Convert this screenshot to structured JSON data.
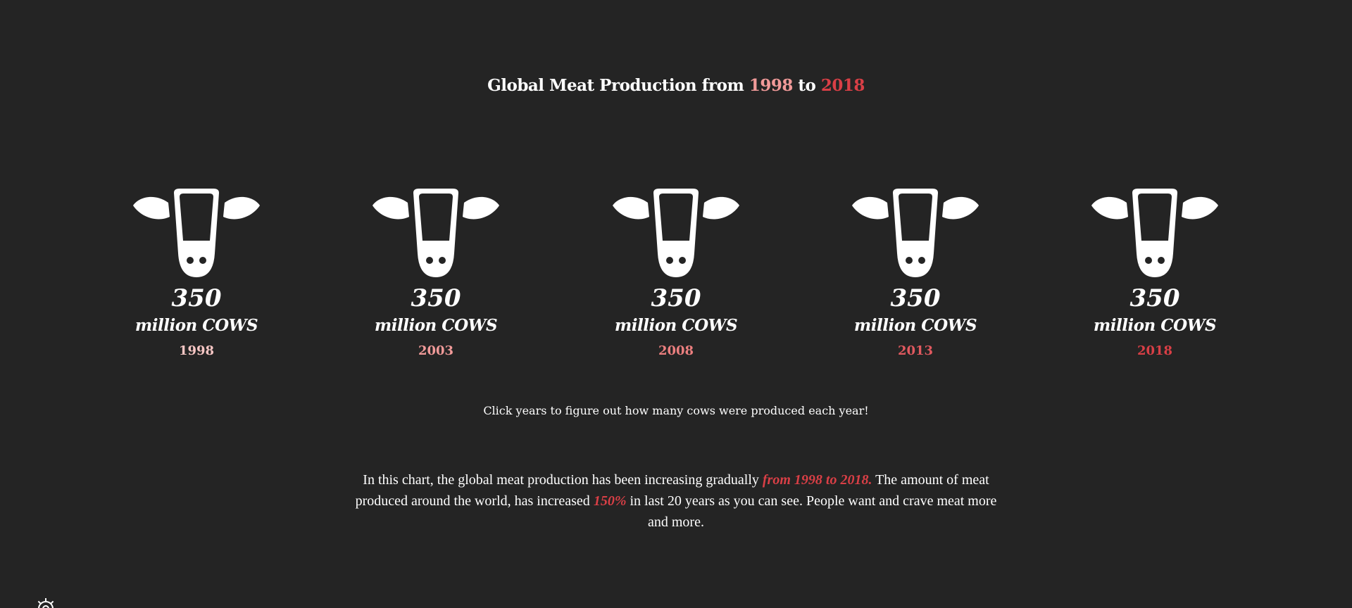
{
  "header": {
    "title_prefix": "Global Meat Production from ",
    "year_start": "1998",
    "title_mid": " to ",
    "year_end": "2018"
  },
  "colors": {
    "background": "#242424",
    "text": "#ffffff",
    "year_1998": "#f6c6c4",
    "year_2003": "#f19a99",
    "year_2008": "#ec7f7f",
    "year_2013": "#e1595f",
    "year_2018": "#d93f46",
    "highlight": "#d93f46"
  },
  "cows": [
    {
      "icon": "cow-head-icon",
      "value": "350",
      "unit": "million COWS",
      "year": "1998"
    },
    {
      "icon": "cow-head-icon",
      "value": "350",
      "unit": "million COWS",
      "year": "2003"
    },
    {
      "icon": "cow-head-icon",
      "value": "350",
      "unit": "million COWS",
      "year": "2008"
    },
    {
      "icon": "cow-head-icon",
      "value": "350",
      "unit": "million COWS",
      "year": "2013"
    },
    {
      "icon": "cow-head-icon",
      "value": "350",
      "unit": "million COWS",
      "year": "2018"
    }
  ],
  "hint": "Click years to figure out how many cows were produced each year!",
  "description": {
    "part1": "In this chart, the global meat production has been increasing gradually ",
    "highlight1": "from 1998 to 2018.",
    "part2": " The amount of meat produced around the world, has increased ",
    "highlight2": "150%",
    "part3": " in last 20 years as you can see. People want and crave meat more and more."
  },
  "settings_icon": "gear-icon"
}
